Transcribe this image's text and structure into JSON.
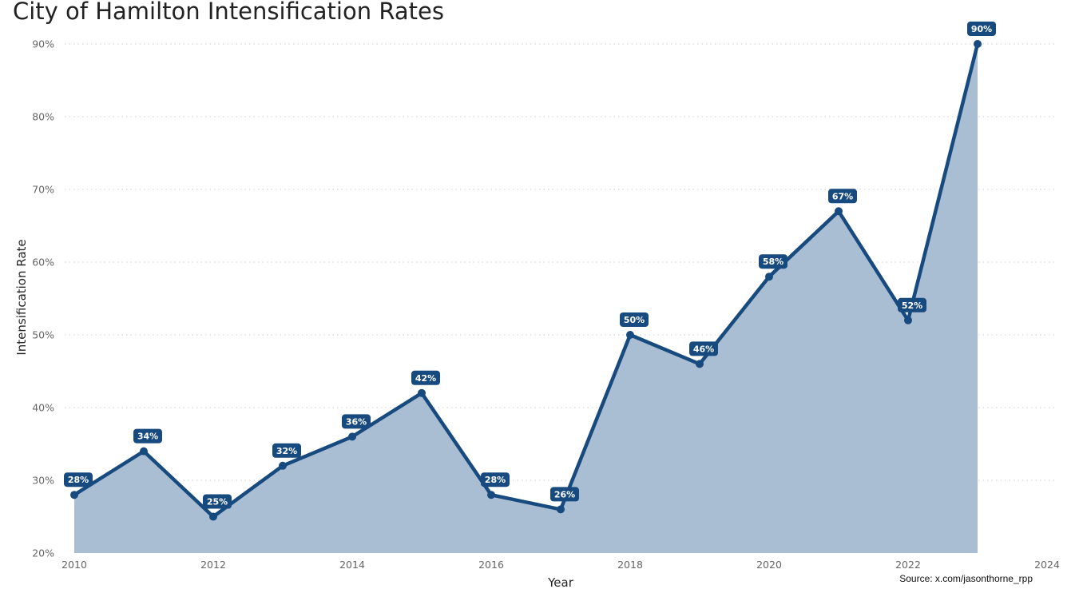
{
  "title": "City of Hamilton Intensification Rates",
  "source": "Source: x.com/jasonthorne_rpp",
  "colors": {
    "line": "#174a7e",
    "area": "#a9bdd3",
    "label_bg": "#174a7e",
    "label_text": "#ffffff",
    "grid": "#cccccc"
  },
  "chart_data": {
    "type": "area",
    "title": "City of Hamilton Intensification Rates",
    "xlabel": "Year",
    "ylabel": "Intensification Rate",
    "x": [
      2010,
      2011,
      2012,
      2013,
      2014,
      2015,
      2016,
      2017,
      2018,
      2019,
      2020,
      2021,
      2022,
      2023
    ],
    "series": [
      {
        "values": [
          28,
          34,
          25,
          32,
          36,
          42,
          28,
          26,
          50,
          46,
          58,
          67,
          52,
          90
        ],
        "data_labels": [
          "28%",
          "34%",
          "25%",
          "32%",
          "36%",
          "42%",
          "28%",
          "26%",
          "50%",
          "46%",
          "58%",
          "67%",
          "52%",
          "90%"
        ]
      }
    ],
    "xlim": [
      2010,
      2024
    ],
    "ylim": [
      20,
      90
    ],
    "x_ticks": [
      "2010",
      "2012",
      "2014",
      "2016",
      "2018",
      "2020",
      "2022",
      "2024"
    ],
    "y_ticks": [
      "20%",
      "30%",
      "40%",
      "50%",
      "60%",
      "70%",
      "80%",
      "90%"
    ],
    "grid": "horizontal dotted",
    "legend": "none"
  }
}
